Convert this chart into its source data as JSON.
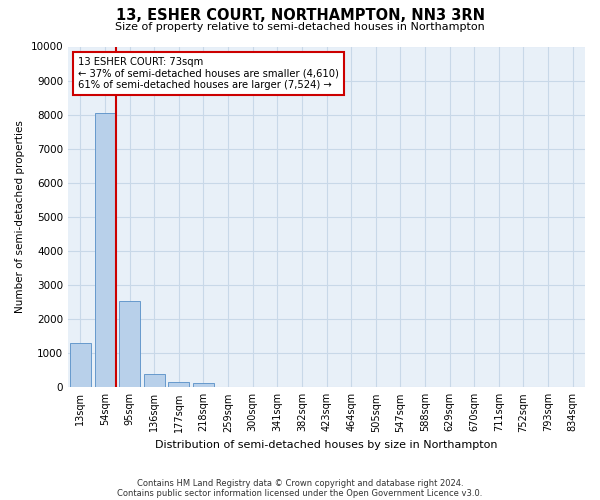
{
  "title": "13, ESHER COURT, NORTHAMPTON, NN3 3RN",
  "subtitle": "Size of property relative to semi-detached houses in Northampton",
  "xlabel": "Distribution of semi-detached houses by size in Northampton",
  "ylabel": "Number of semi-detached properties",
  "categories": [
    "13sqm",
    "54sqm",
    "95sqm",
    "136sqm",
    "177sqm",
    "218sqm",
    "259sqm",
    "300sqm",
    "341sqm",
    "382sqm",
    "423sqm",
    "464sqm",
    "505sqm",
    "547sqm",
    "588sqm",
    "629sqm",
    "670sqm",
    "711sqm",
    "752sqm",
    "793sqm",
    "834sqm"
  ],
  "values": [
    1300,
    8050,
    2520,
    380,
    145,
    120,
    0,
    0,
    0,
    0,
    0,
    0,
    0,
    0,
    0,
    0,
    0,
    0,
    0,
    0,
    0
  ],
  "bar_color": "#b8d0ea",
  "bar_edge_color": "#6699cc",
  "annotation_text": "13 ESHER COURT: 73sqm\n← 37% of semi-detached houses are smaller (4,610)\n61% of semi-detached houses are larger (7,524) →",
  "vline_color": "#cc0000",
  "vline_x_index": 1.45,
  "box_color": "#cc0000",
  "ylim": [
    0,
    10000
  ],
  "yticks": [
    0,
    1000,
    2000,
    3000,
    4000,
    5000,
    6000,
    7000,
    8000,
    9000,
    10000
  ],
  "ytick_labels": [
    "0",
    "1000",
    "2000",
    "3000",
    "4000",
    "5000",
    "6000",
    "7000",
    "8000",
    "9000",
    "10000"
  ],
  "grid_color": "#c8d8e8",
  "bg_color": "#e8f0f8",
  "footer1": "Contains HM Land Registry data © Crown copyright and database right 2024.",
  "footer2": "Contains public sector information licensed under the Open Government Licence v3.0."
}
